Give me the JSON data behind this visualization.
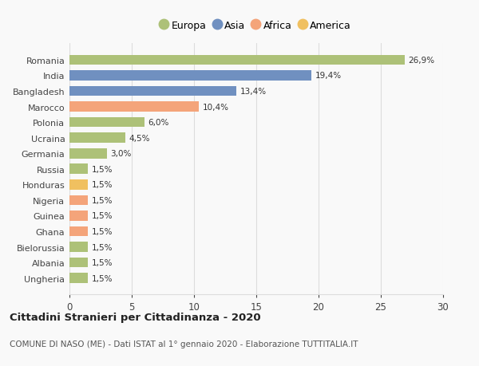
{
  "categories": [
    "Ungheria",
    "Albania",
    "Bielorussia",
    "Ghana",
    "Guinea",
    "Nigeria",
    "Honduras",
    "Russia",
    "Germania",
    "Ucraina",
    "Polonia",
    "Marocco",
    "Bangladesh",
    "India",
    "Romania"
  ],
  "values": [
    1.5,
    1.5,
    1.5,
    1.5,
    1.5,
    1.5,
    1.5,
    1.5,
    3.0,
    4.5,
    6.0,
    10.4,
    13.4,
    19.4,
    26.9
  ],
  "colors": [
    "#adc178",
    "#adc178",
    "#adc178",
    "#f4a47a",
    "#f4a47a",
    "#f4a47a",
    "#f0c060",
    "#adc178",
    "#adc178",
    "#adc178",
    "#adc178",
    "#f4a47a",
    "#7090c0",
    "#7090c0",
    "#adc178"
  ],
  "labels": [
    "1,5%",
    "1,5%",
    "1,5%",
    "1,5%",
    "1,5%",
    "1,5%",
    "1,5%",
    "1,5%",
    "3,0%",
    "4,5%",
    "6,0%",
    "10,4%",
    "13,4%",
    "19,4%",
    "26,9%"
  ],
  "legend": [
    {
      "label": "Europa",
      "color": "#adc178"
    },
    {
      "label": "Asia",
      "color": "#7090c0"
    },
    {
      "label": "Africa",
      "color": "#f4a47a"
    },
    {
      "label": "America",
      "color": "#f0c060"
    }
  ],
  "xlim": [
    0,
    30
  ],
  "xticks": [
    0,
    5,
    10,
    15,
    20,
    25,
    30
  ],
  "title": "Cittadini Stranieri per Cittadinanza - 2020",
  "subtitle": "COMUNE DI NASO (ME) - Dati ISTAT al 1° gennaio 2020 - Elaborazione TUTTITALIA.IT",
  "background_color": "#f9f9f9",
  "grid_color": "#dddddd"
}
